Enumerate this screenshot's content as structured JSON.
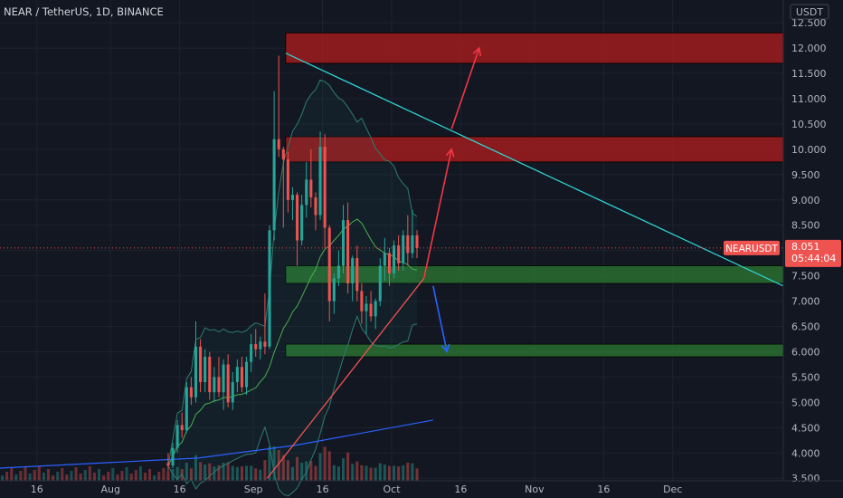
{
  "header": {
    "title": "NEAR / TetherUS, 1D, BINANCE",
    "currency": "USDT"
  },
  "colors": {
    "background": "#131722",
    "grid": "#1e222d",
    "bull": "#26a69a",
    "bear": "#ef5350",
    "trendline": "#2fd1d1",
    "support_line": "#ef5350",
    "ma_long": "#2962ff",
    "resistance_zone": "#b71c1c",
    "support_zone": "#2e7d32",
    "arrow_up": "#f23645",
    "arrow_down": "#2962ff"
  },
  "price_tag": {
    "symbol": "NEARUSDT",
    "price": "8.051",
    "countdown": "05:44:04",
    "value": 8.051
  },
  "chart_data": {
    "type": "candlestick",
    "symbol": "NEARUSDT",
    "interval": "1D",
    "exchange": "BINANCE",
    "quote": "USDT",
    "ylim": [
      3.45,
      12.95
    ],
    "y_ticks": [
      3.5,
      4.0,
      4.5,
      5.0,
      5.5,
      6.0,
      6.5,
      7.0,
      7.5,
      8.0,
      8.5,
      9.0,
      9.5,
      10.0,
      10.5,
      11.0,
      11.5,
      12.0,
      12.5
    ],
    "y_tick_labels": [
      "3.500",
      "4.000",
      "4.500",
      "5.000",
      "5.500",
      "6.000",
      "6.500",
      "7.000",
      "7.500",
      "8.000",
      "8.500",
      "9.000",
      "9.500",
      "10.000",
      "10.500",
      "11.000",
      "11.500",
      "12.000",
      "12.500"
    ],
    "x_range": [
      "2021-07-08",
      "2021-12-25"
    ],
    "x_ticks": [
      {
        "date": "2021-07-16",
        "label": "16"
      },
      {
        "date": "2021-08-01",
        "label": "Aug"
      },
      {
        "date": "2021-08-16",
        "label": "16"
      },
      {
        "date": "2021-09-01",
        "label": "Sep"
      },
      {
        "date": "2021-09-16",
        "label": "16"
      },
      {
        "date": "2021-10-01",
        "label": "Oct"
      },
      {
        "date": "2021-10-16",
        "label": "16"
      },
      {
        "date": "2021-11-01",
        "label": "Nov"
      },
      {
        "date": "2021-11-16",
        "label": "16"
      },
      {
        "date": "2021-12-01",
        "label": "Dec"
      }
    ],
    "first_candle_date": "2021-08-13",
    "candles": [
      [
        3.8,
        4.0,
        3.65,
        3.75
      ],
      [
        3.75,
        4.2,
        3.7,
        4.1
      ],
      [
        4.1,
        4.65,
        4.0,
        4.55
      ],
      [
        4.55,
        4.8,
        4.3,
        4.45
      ],
      [
        4.45,
        5.4,
        4.4,
        5.3
      ],
      [
        5.3,
        5.5,
        4.95,
        5.1
      ],
      [
        5.1,
        6.6,
        5.0,
        6.1
      ],
      [
        6.1,
        6.25,
        5.2,
        5.4
      ],
      [
        5.4,
        6.05,
        5.2,
        5.9
      ],
      [
        5.9,
        6.0,
        5.05,
        5.2
      ],
      [
        5.2,
        5.7,
        5.0,
        5.5
      ],
      [
        5.5,
        5.9,
        5.1,
        5.2
      ],
      [
        5.2,
        5.85,
        4.85,
        5.75
      ],
      [
        5.75,
        5.95,
        4.9,
        5.0
      ],
      [
        5.0,
        5.6,
        4.85,
        5.4
      ],
      [
        5.4,
        5.85,
        5.2,
        5.7
      ],
      [
        5.7,
        5.9,
        5.2,
        5.3
      ],
      [
        5.3,
        5.9,
        5.15,
        5.8
      ],
      [
        5.8,
        6.35,
        5.6,
        6.15
      ],
      [
        6.15,
        6.45,
        5.9,
        6.05
      ],
      [
        6.05,
        6.3,
        5.85,
        6.2
      ],
      [
        6.2,
        7.15,
        5.95,
        6.1
      ],
      [
        6.1,
        8.5,
        6.05,
        8.4
      ],
      [
        8.4,
        11.15,
        8.2,
        10.2
      ],
      [
        10.2,
        11.85,
        9.85,
        10.0
      ],
      [
        10.0,
        10.05,
        8.45,
        9.8
      ],
      [
        9.8,
        9.95,
        8.75,
        9.0
      ],
      [
        9.0,
        9.25,
        8.6,
        9.1
      ],
      [
        9.1,
        9.15,
        7.7,
        8.2
      ],
      [
        8.2,
        9.1,
        8.1,
        8.9
      ],
      [
        8.9,
        9.75,
        8.65,
        9.4
      ],
      [
        9.4,
        10.0,
        8.85,
        9.05
      ],
      [
        9.05,
        9.15,
        8.4,
        8.7
      ],
      [
        8.7,
        10.35,
        8.6,
        10.05
      ],
      [
        10.05,
        10.3,
        8.05,
        8.45
      ],
      [
        8.45,
        8.5,
        6.6,
        7.0
      ],
      [
        7.0,
        7.55,
        6.75,
        7.45
      ],
      [
        7.45,
        8.0,
        7.3,
        7.7
      ],
      [
        7.7,
        8.9,
        7.55,
        8.6
      ],
      [
        8.6,
        8.95,
        7.15,
        7.35
      ],
      [
        7.35,
        7.9,
        7.0,
        7.85
      ],
      [
        7.85,
        8.1,
        7.0,
        7.2
      ],
      [
        7.2,
        7.35,
        6.55,
        6.8
      ],
      [
        6.8,
        7.1,
        6.35,
        6.95
      ],
      [
        6.95,
        7.2,
        6.6,
        6.7
      ],
      [
        6.7,
        7.05,
        6.45,
        7.0
      ],
      [
        7.0,
        7.85,
        6.9,
        7.7
      ],
      [
        7.7,
        8.25,
        7.4,
        7.95
      ],
      [
        7.95,
        8.05,
        7.3,
        7.55
      ],
      [
        7.55,
        8.2,
        7.45,
        8.1
      ],
      [
        8.1,
        8.3,
        7.6,
        7.75
      ],
      [
        7.75,
        8.4,
        7.6,
        8.3
      ],
      [
        8.3,
        8.7,
        7.7,
        7.95
      ],
      [
        7.95,
        8.8,
        7.85,
        8.3
      ],
      [
        8.3,
        8.4,
        7.85,
        8.05
      ]
    ],
    "volume_max_price_units": 0.55,
    "annotations": [
      {
        "kind": "resistance_zone",
        "y_low": 11.7,
        "y_high": 12.3
      },
      {
        "kind": "resistance_zone",
        "y_low": 9.75,
        "y_high": 10.25
      },
      {
        "kind": "support_zone",
        "y_low": 7.35,
        "y_high": 7.7
      },
      {
        "kind": "support_zone",
        "y_low": 5.9,
        "y_high": 6.15
      },
      {
        "kind": "descending_trendline",
        "from": [
          "2021-09-08",
          11.9
        ],
        "to": [
          "2021-12-25",
          7.3
        ]
      },
      {
        "kind": "ascending_trendline",
        "from": [
          "2021-09-04",
          3.5
        ],
        "to": [
          "2021-10-08",
          7.45
        ]
      },
      {
        "kind": "arrow_up",
        "from": [
          "2021-10-08",
          7.45
        ],
        "to": [
          "2021-10-14",
          10.0
        ]
      },
      {
        "kind": "arrow_up",
        "from": [
          "2021-10-14",
          10.4
        ],
        "to": [
          "2021-10-20",
          12.0
        ]
      },
      {
        "kind": "arrow_down",
        "from": [
          "2021-10-10",
          7.3
        ],
        "to": [
          "2021-10-13",
          6.0
        ]
      }
    ]
  }
}
